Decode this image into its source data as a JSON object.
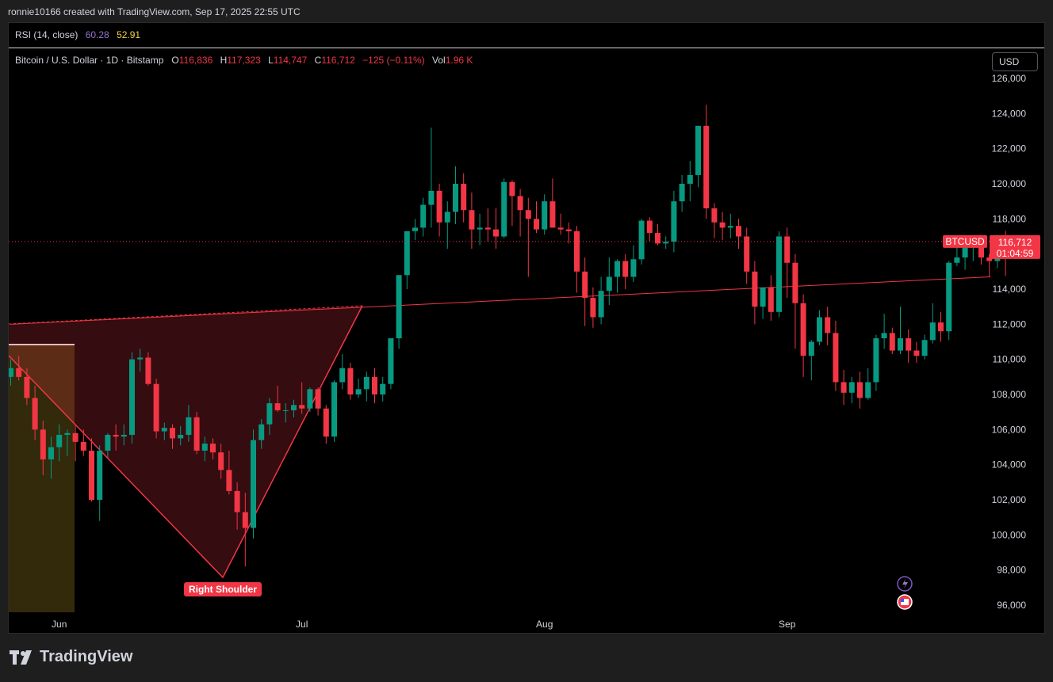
{
  "header": {
    "text": "ronnie10166 created with TradingView.com, Sep 17, 2025 22:55 UTC"
  },
  "rsi": {
    "label": "RSI (14, close)",
    "v1": "60.28",
    "v2": "52.91",
    "v1_color": "#9575cd",
    "v2_color": "#f5d142"
  },
  "legend": {
    "title": "Bitcoin / U.S. Dollar · 1D · Bitstamp",
    "o_k": "O",
    "o_v": "116,836",
    "h_k": "H",
    "h_v": "117,323",
    "l_k": "L",
    "l_v": "114,747",
    "c_k": "C",
    "c_v": "116,712",
    "chg": "−125 (−0.11%)",
    "vol_k": "Vol",
    "vol_v": "1.96 K"
  },
  "currency": "USD",
  "price_tag": {
    "symbol": "BTCUSD",
    "price": "116,712",
    "countdown": "01:04:59"
  },
  "annotation": {
    "label": "Right Shoulder"
  },
  "brand": {
    "name": "TradingView"
  },
  "colors": {
    "up": "#089981",
    "down": "#f23645",
    "background": "#000000"
  },
  "chart_data": {
    "type": "candlestick",
    "ylim": [
      95000,
      127000
    ],
    "yticks": [
      "96,000",
      "98,000",
      "100,000",
      "102,000",
      "104,000",
      "106,000",
      "108,000",
      "110,000",
      "112,000",
      "114,000",
      "116,000",
      "118,000",
      "120,000",
      "122,000",
      "124,000",
      "126,000"
    ],
    "xticks": [
      "Jun",
      "Jul",
      "Aug",
      "Sep"
    ],
    "last_price": 116712,
    "trendline_neckline": {
      "from": [
        0,
        112000
      ],
      "to": [
        123,
        114700
      ]
    },
    "candles": [
      [
        109000,
        110000,
        108500,
        109500
      ],
      [
        109500,
        110200,
        108800,
        109000
      ],
      [
        109000,
        109500,
        107400,
        107800
      ],
      [
        107800,
        108500,
        105400,
        106000
      ],
      [
        106000,
        106500,
        103400,
        104300
      ],
      [
        104300,
        105600,
        103200,
        105000
      ],
      [
        105000,
        106300,
        104200,
        105700
      ],
      [
        105700,
        106000,
        104500,
        105800
      ],
      [
        105800,
        106300,
        104200,
        105300
      ],
      [
        105300,
        106000,
        104500,
        104800
      ],
      [
        104800,
        105500,
        101900,
        102000
      ],
      [
        102000,
        105100,
        100800,
        104800
      ],
      [
        104800,
        105800,
        104400,
        105700
      ],
      [
        105700,
        106300,
        104800,
        105600
      ],
      [
        105600,
        106300,
        105100,
        105700
      ],
      [
        105700,
        110400,
        105200,
        110000
      ],
      [
        110000,
        110600,
        109300,
        110100
      ],
      [
        110100,
        110400,
        108500,
        108600
      ],
      [
        108600,
        108900,
        105500,
        105900
      ],
      [
        105900,
        106400,
        105400,
        106100
      ],
      [
        106100,
        106300,
        104900,
        105500
      ],
      [
        105500,
        106200,
        105100,
        105700
      ],
      [
        105700,
        107400,
        105300,
        106700
      ],
      [
        106700,
        107000,
        104600,
        104800
      ],
      [
        104800,
        105600,
        104200,
        105200
      ],
      [
        105200,
        105500,
        104300,
        104700
      ],
      [
        104700,
        105200,
        103200,
        103700
      ],
      [
        103700,
        104800,
        102300,
        102500
      ],
      [
        102500,
        103000,
        100300,
        101300
      ],
      [
        101300,
        102400,
        98200,
        100400
      ],
      [
        100400,
        106000,
        99800,
        105400
      ],
      [
        105400,
        106600,
        104900,
        106300
      ],
      [
        106300,
        107800,
        105700,
        107500
      ],
      [
        107500,
        108500,
        107000,
        107100
      ],
      [
        107100,
        107500,
        106400,
        107100
      ],
      [
        107100,
        107700,
        106700,
        107400
      ],
      [
        107400,
        108700,
        106900,
        107200
      ],
      [
        107200,
        108400,
        107000,
        108300
      ],
      [
        108300,
        108400,
        106800,
        107200
      ],
      [
        107200,
        107400,
        105200,
        105600
      ],
      [
        105600,
        108800,
        105300,
        108700
      ],
      [
        108700,
        110300,
        108300,
        109500
      ],
      [
        109500,
        109800,
        107700,
        108000
      ],
      [
        108000,
        108900,
        107800,
        108300
      ],
      [
        108300,
        109300,
        107600,
        109000
      ],
      [
        109000,
        109500,
        107500,
        108000
      ],
      [
        108000,
        109000,
        107600,
        108600
      ],
      [
        108600,
        111000,
        108300,
        111200
      ],
      [
        111200,
        114500,
        110600,
        114800
      ],
      [
        114800,
        117000,
        114000,
        117300
      ],
      [
        117300,
        118000,
        116800,
        117500
      ],
      [
        117500,
        119200,
        117000,
        118800
      ],
      [
        118800,
        123200,
        117500,
        119600
      ],
      [
        119600,
        120000,
        117000,
        117800
      ],
      [
        117800,
        119000,
        116300,
        118400
      ],
      [
        118400,
        121000,
        117700,
        120000
      ],
      [
        120000,
        120600,
        117800,
        118500
      ],
      [
        118500,
        119500,
        116300,
        117400
      ],
      [
        117400,
        118300,
        116500,
        117500
      ],
      [
        117500,
        118600,
        116700,
        117400
      ],
      [
        117400,
        118600,
        116300,
        117000
      ],
      [
        117000,
        120300,
        116900,
        120100
      ],
      [
        120100,
        120200,
        117600,
        119300
      ],
      [
        119300,
        119700,
        117000,
        118500
      ],
      [
        118500,
        119200,
        114700,
        118000
      ],
      [
        118000,
        119000,
        117200,
        117400
      ],
      [
        117400,
        119400,
        117100,
        119000
      ],
      [
        119000,
        120300,
        117600,
        117500
      ],
      [
        117500,
        118300,
        117100,
        117400
      ],
      [
        117400,
        117800,
        116600,
        117300
      ],
      [
        117300,
        117600,
        113800,
        115000
      ],
      [
        115000,
        115800,
        111900,
        113500
      ],
      [
        113500,
        114100,
        111800,
        112400
      ],
      [
        112400,
        114700,
        112000,
        113900
      ],
      [
        113900,
        115800,
        113100,
        114700
      ],
      [
        114700,
        115700,
        113800,
        115600
      ],
      [
        115600,
        116000,
        114000,
        114700
      ],
      [
        114700,
        116500,
        114400,
        115700
      ],
      [
        115700,
        118000,
        115400,
        117900
      ],
      [
        117900,
        118100,
        116700,
        117200
      ],
      [
        117200,
        117700,
        116500,
        116600
      ],
      [
        116600,
        117000,
        116300,
        116700
      ],
      [
        116700,
        119600,
        116100,
        119000
      ],
      [
        119000,
        120500,
        118400,
        120000
      ],
      [
        120000,
        121300,
        119000,
        120500
      ],
      [
        120500,
        123300,
        119800,
        123300
      ],
      [
        123300,
        124500,
        118000,
        118600
      ],
      [
        118600,
        118900,
        116900,
        117800
      ],
      [
        117800,
        118400,
        116800,
        117500
      ],
      [
        117500,
        118300,
        116900,
        117600
      ],
      [
        117600,
        118000,
        116300,
        117000
      ],
      [
        117000,
        117500,
        114300,
        115000
      ],
      [
        115000,
        115600,
        112000,
        113000
      ],
      [
        113000,
        114000,
        112300,
        114100
      ],
      [
        114100,
        114800,
        112200,
        112700
      ],
      [
        112700,
        117300,
        112400,
        117000
      ],
      [
        117000,
        117500,
        113500,
        115500
      ],
      [
        115500,
        116000,
        110600,
        113200
      ],
      [
        113200,
        113700,
        109000,
        110200
      ],
      [
        110200,
        111100,
        108800,
        111000
      ],
      [
        111000,
        112800,
        110800,
        112400
      ],
      [
        112400,
        113000,
        110800,
        111500
      ],
      [
        111500,
        112200,
        108200,
        108700
      ],
      [
        108700,
        109400,
        107400,
        108100
      ],
      [
        108100,
        109000,
        107500,
        108700
      ],
      [
        108700,
        109300,
        107200,
        107800
      ],
      [
        107800,
        109500,
        107700,
        108700
      ],
      [
        108700,
        111400,
        108200,
        111200
      ],
      [
        111200,
        112600,
        110600,
        111500
      ],
      [
        111500,
        111800,
        110300,
        110500
      ],
      [
        110500,
        113000,
        110300,
        111200
      ],
      [
        111200,
        111700,
        109800,
        110500
      ],
      [
        110500,
        111000,
        109800,
        110200
      ],
      [
        110200,
        111400,
        110000,
        111100
      ],
      [
        111100,
        113200,
        110900,
        112100
      ],
      [
        112100,
        112700,
        111000,
        111600
      ],
      [
        111600,
        115600,
        111100,
        115500
      ],
      [
        115500,
        116700,
        115300,
        115800
      ],
      [
        115800,
        116800,
        115100,
        116500
      ],
      [
        116500,
        116800,
        115600,
        116500
      ],
      [
        116500,
        116800,
        115400,
        115800
      ],
      [
        115800,
        116000,
        114700,
        115600
      ],
      [
        115600,
        117100,
        115200,
        117000
      ],
      [
        116836,
        117323,
        114747,
        116712
      ]
    ]
  }
}
